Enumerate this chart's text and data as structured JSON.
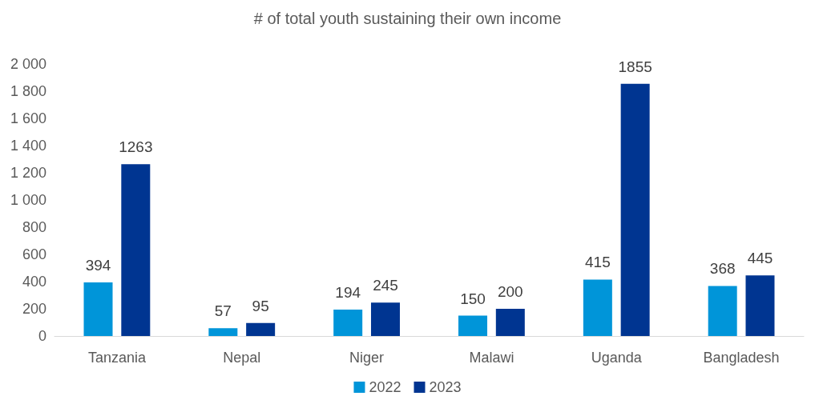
{
  "chart_data": {
    "type": "bar",
    "title": "# of total youth sustaining their own income",
    "categories": [
      "Tanzania",
      "Nepal",
      "Niger",
      "Malawi",
      "Uganda",
      "Bangladesh"
    ],
    "series": [
      {
        "name": "2022",
        "color": "#0095d9",
        "values": [
          394,
          57,
          194,
          150,
          415,
          368
        ]
      },
      {
        "name": "2023",
        "color": "#003591",
        "values": [
          1263,
          95,
          245,
          200,
          1855,
          445
        ]
      }
    ],
    "ylim": [
      0,
      2000
    ],
    "yticks": [
      0,
      200,
      400,
      600,
      800,
      {
        "value": 1000,
        "label": "1 000"
      },
      {
        "value": 1200,
        "label": "1 200"
      },
      {
        "value": 1400,
        "label": "1 400"
      },
      {
        "value": 1600,
        "label": "1 600"
      },
      {
        "value": 1800,
        "label": "1 800"
      },
      {
        "value": 2000,
        "label": "2 000"
      }
    ],
    "grid": false,
    "legend": "bottom",
    "data_labels": true
  }
}
